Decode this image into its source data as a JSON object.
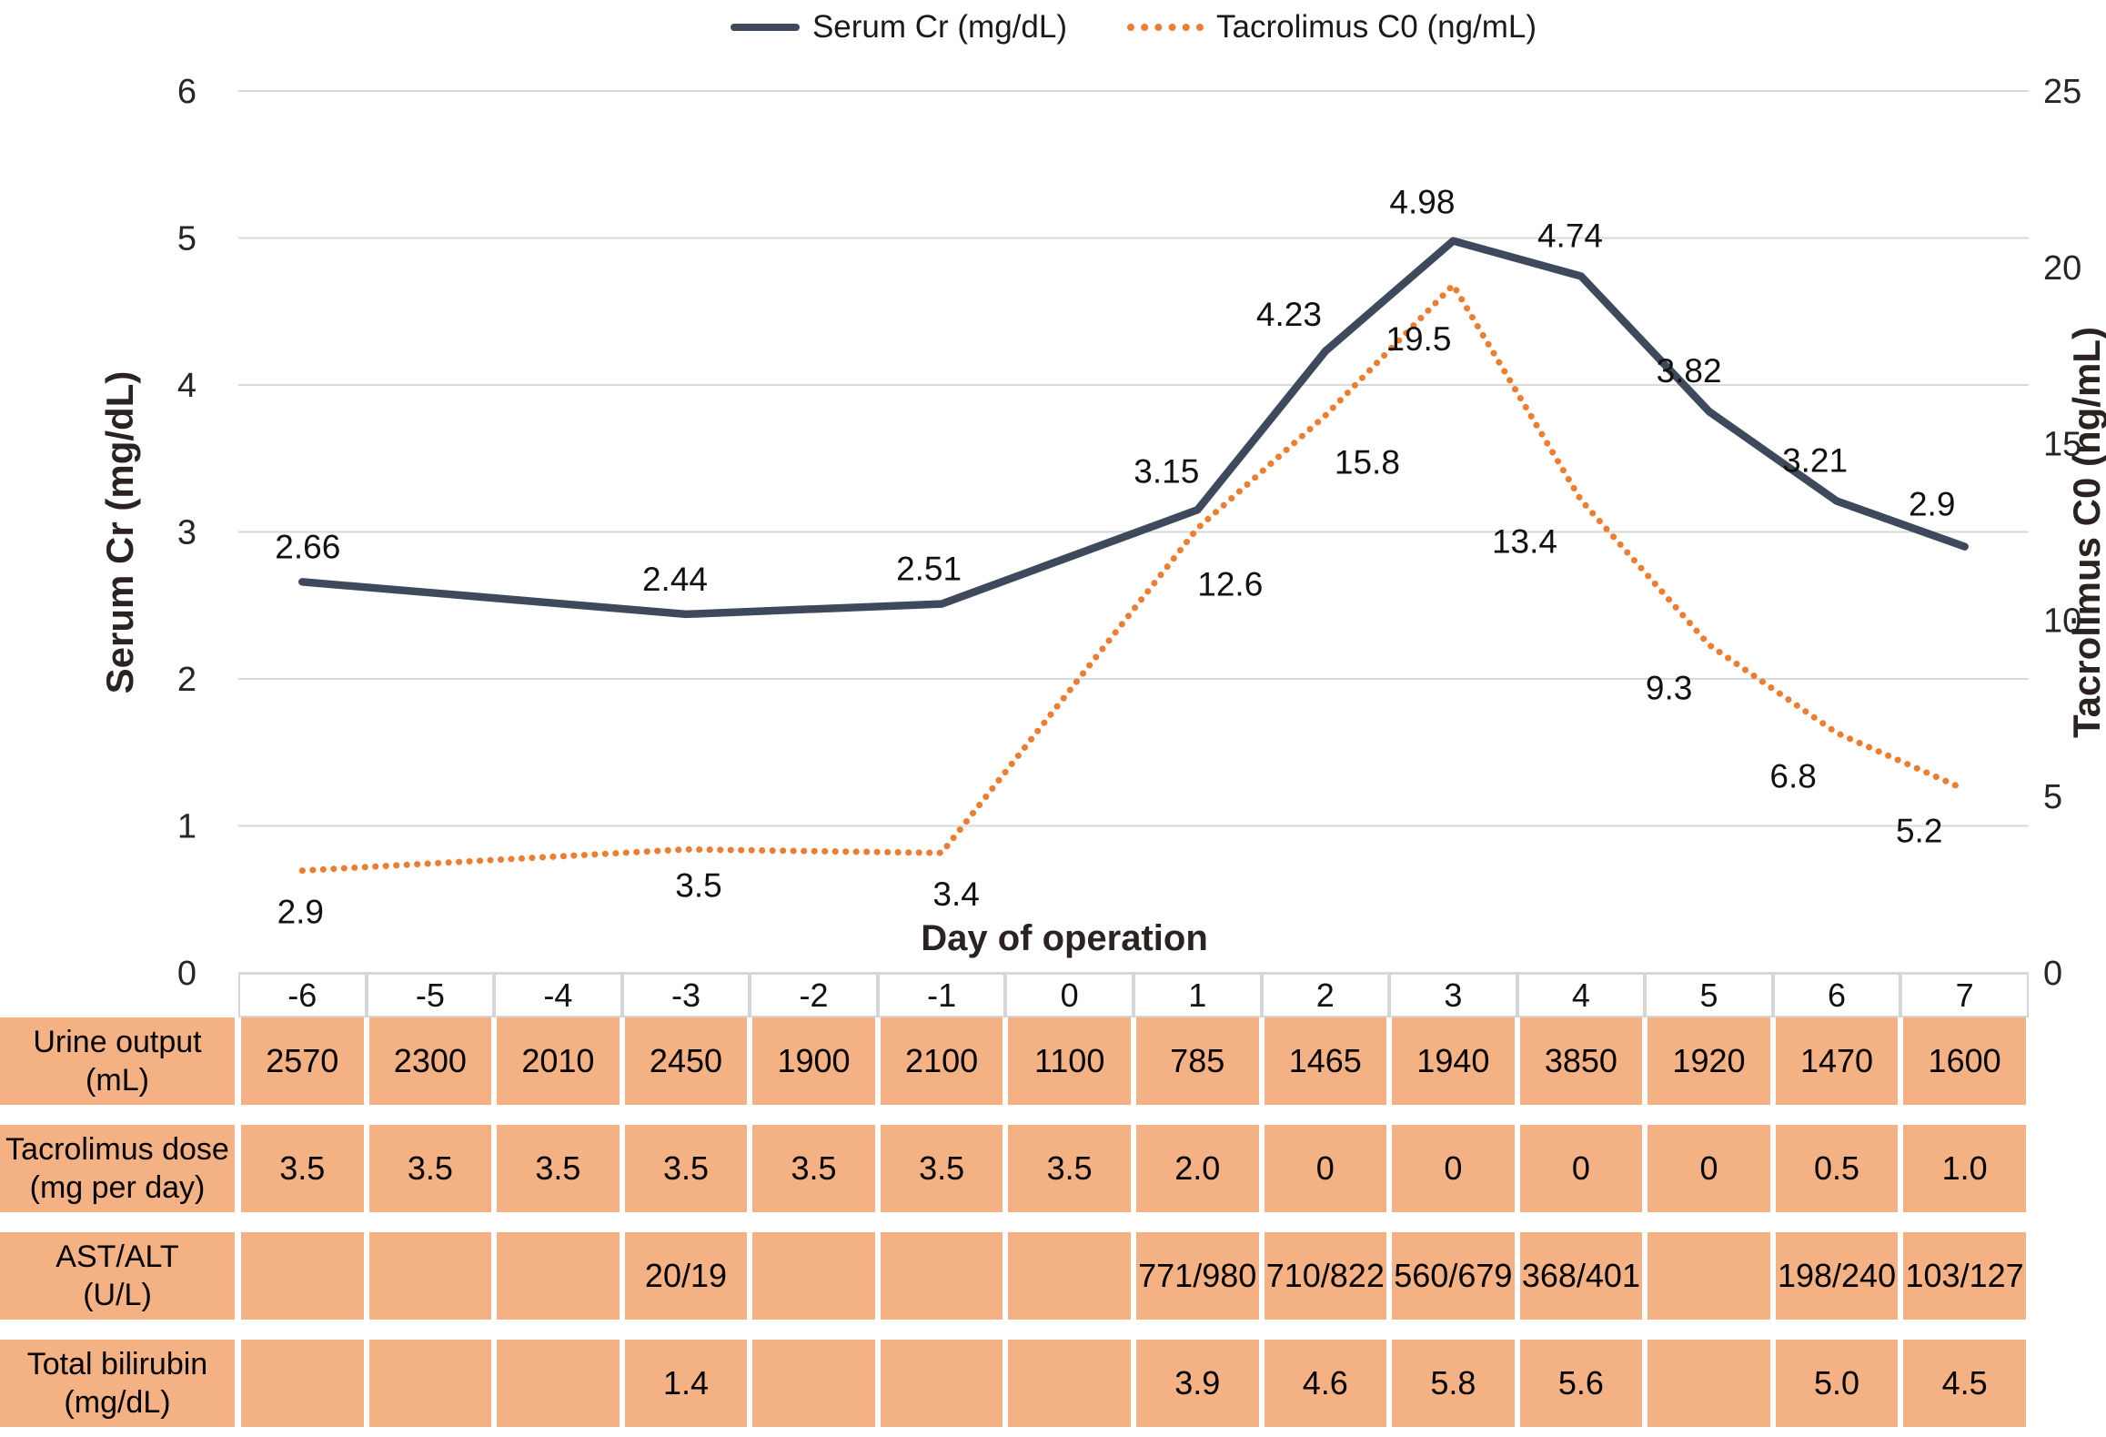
{
  "legend": [
    {
      "label": "Serum Cr (mg/dL)",
      "series": "serum"
    },
    {
      "label": "Tacrolimus C0 (ng/mL)",
      "series": "tacrolimus"
    }
  ],
  "colors": {
    "serum_line": "#3E4A5C",
    "tacrolimus_line": "#ED7D31",
    "table_cell": "#F3B184",
    "gridline": "#D9D9D9",
    "axis_text": "#262626"
  },
  "chart_data": {
    "type": "line",
    "x": [
      -6,
      -3,
      -1,
      1,
      2,
      3,
      4,
      5,
      6,
      7
    ],
    "series": [
      {
        "name": "Serum Cr (mg/dL)",
        "axis": "left",
        "style": "solid",
        "color": "#3E4A5C",
        "values": [
          2.66,
          2.44,
          2.51,
          3.15,
          4.23,
          4.98,
          4.74,
          3.82,
          3.21,
          2.9
        ],
        "labels": [
          "2.66",
          "2.44",
          "2.51",
          "3.15",
          "4.23",
          "4.98",
          "4.74",
          "3.82",
          "3.21",
          "2.9"
        ]
      },
      {
        "name": "Tacrolimus C0 (ng/mL)",
        "axis": "right",
        "style": "dotted",
        "color": "#ED7D31",
        "values": [
          2.9,
          3.5,
          3.4,
          12.6,
          15.8,
          19.5,
          13.4,
          9.3,
          6.8,
          5.2
        ],
        "labels": [
          "2.9",
          "3.5",
          "3.4",
          "12.6",
          "15.8",
          "19.5",
          "13.4",
          "9.3",
          "6.8",
          "5.2"
        ]
      }
    ],
    "left_axis": {
      "title": "Serum Cr (mg/dL)",
      "min": 0,
      "max": 6,
      "ticks": [
        6,
        5,
        4,
        3,
        2,
        1,
        0
      ]
    },
    "right_axis": {
      "title": "Tacrolimus C0 (ng/mL)",
      "min": 0,
      "max": 25,
      "ticks": [
        25,
        20,
        15,
        10,
        5,
        0
      ]
    },
    "x_axis": {
      "title": "Day of operation",
      "categories": [
        -6,
        -5,
        -4,
        -3,
        -2,
        -1,
        0,
        1,
        2,
        3,
        4,
        5,
        6,
        7
      ]
    },
    "grid": true,
    "legend_position": "top"
  },
  "table": {
    "day_header": [
      "-6",
      "-5",
      "-4",
      "-3",
      "-2",
      "-1",
      "0",
      "1",
      "2",
      "3",
      "4",
      "5",
      "6",
      "7"
    ],
    "rows": [
      {
        "label_line1": "Urine output",
        "label_line2": "(mL)",
        "values": [
          "2570",
          "2300",
          "2010",
          "2450",
          "1900",
          "2100",
          "1100",
          "785",
          "1465",
          "1940",
          "3850",
          "1920",
          "1470",
          "1600"
        ]
      },
      {
        "label_line1": "Tacrolimus dose",
        "label_line2": "(mg per day)",
        "values": [
          "3.5",
          "3.5",
          "3.5",
          "3.5",
          "3.5",
          "3.5",
          "3.5",
          "2.0",
          "0",
          "0",
          "0",
          "0",
          "0.5",
          "1.0"
        ]
      },
      {
        "label_line1": "AST/ALT",
        "label_line2": "(U/L)",
        "values": [
          "",
          "",
          "",
          "20/19",
          "",
          "",
          "",
          "771/980",
          "710/822",
          "560/679",
          "368/401",
          "",
          "198/240",
          "103/127"
        ]
      },
      {
        "label_line1": "Total bilirubin",
        "label_line2": "(mg/dL)",
        "values": [
          "",
          "",
          "",
          "1.4",
          "",
          "",
          "",
          "3.9",
          "4.6",
          "5.8",
          "5.6",
          "",
          "5.0",
          "4.5"
        ]
      }
    ]
  }
}
